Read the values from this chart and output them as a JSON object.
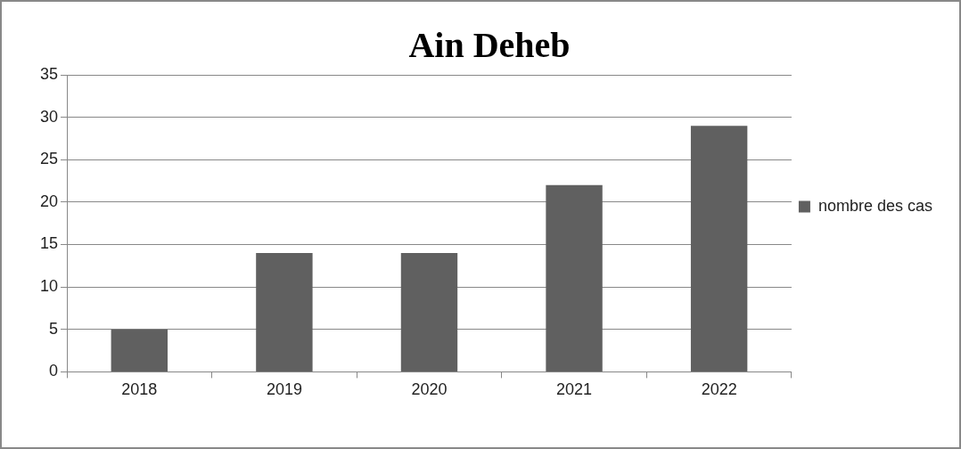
{
  "chart_data": {
    "type": "bar",
    "title": "Ain Deheb",
    "categories": [
      "2018",
      "2019",
      "2020",
      "2021",
      "2022"
    ],
    "series": [
      {
        "name": "nombre des cas",
        "color": "#606060",
        "values": [
          5,
          14,
          14,
          22,
          29
        ]
      }
    ],
    "ylim": [
      0,
      35
    ],
    "yticks": [
      0,
      5,
      10,
      15,
      20,
      25,
      30,
      35
    ],
    "grid": "y",
    "legend": "right"
  }
}
